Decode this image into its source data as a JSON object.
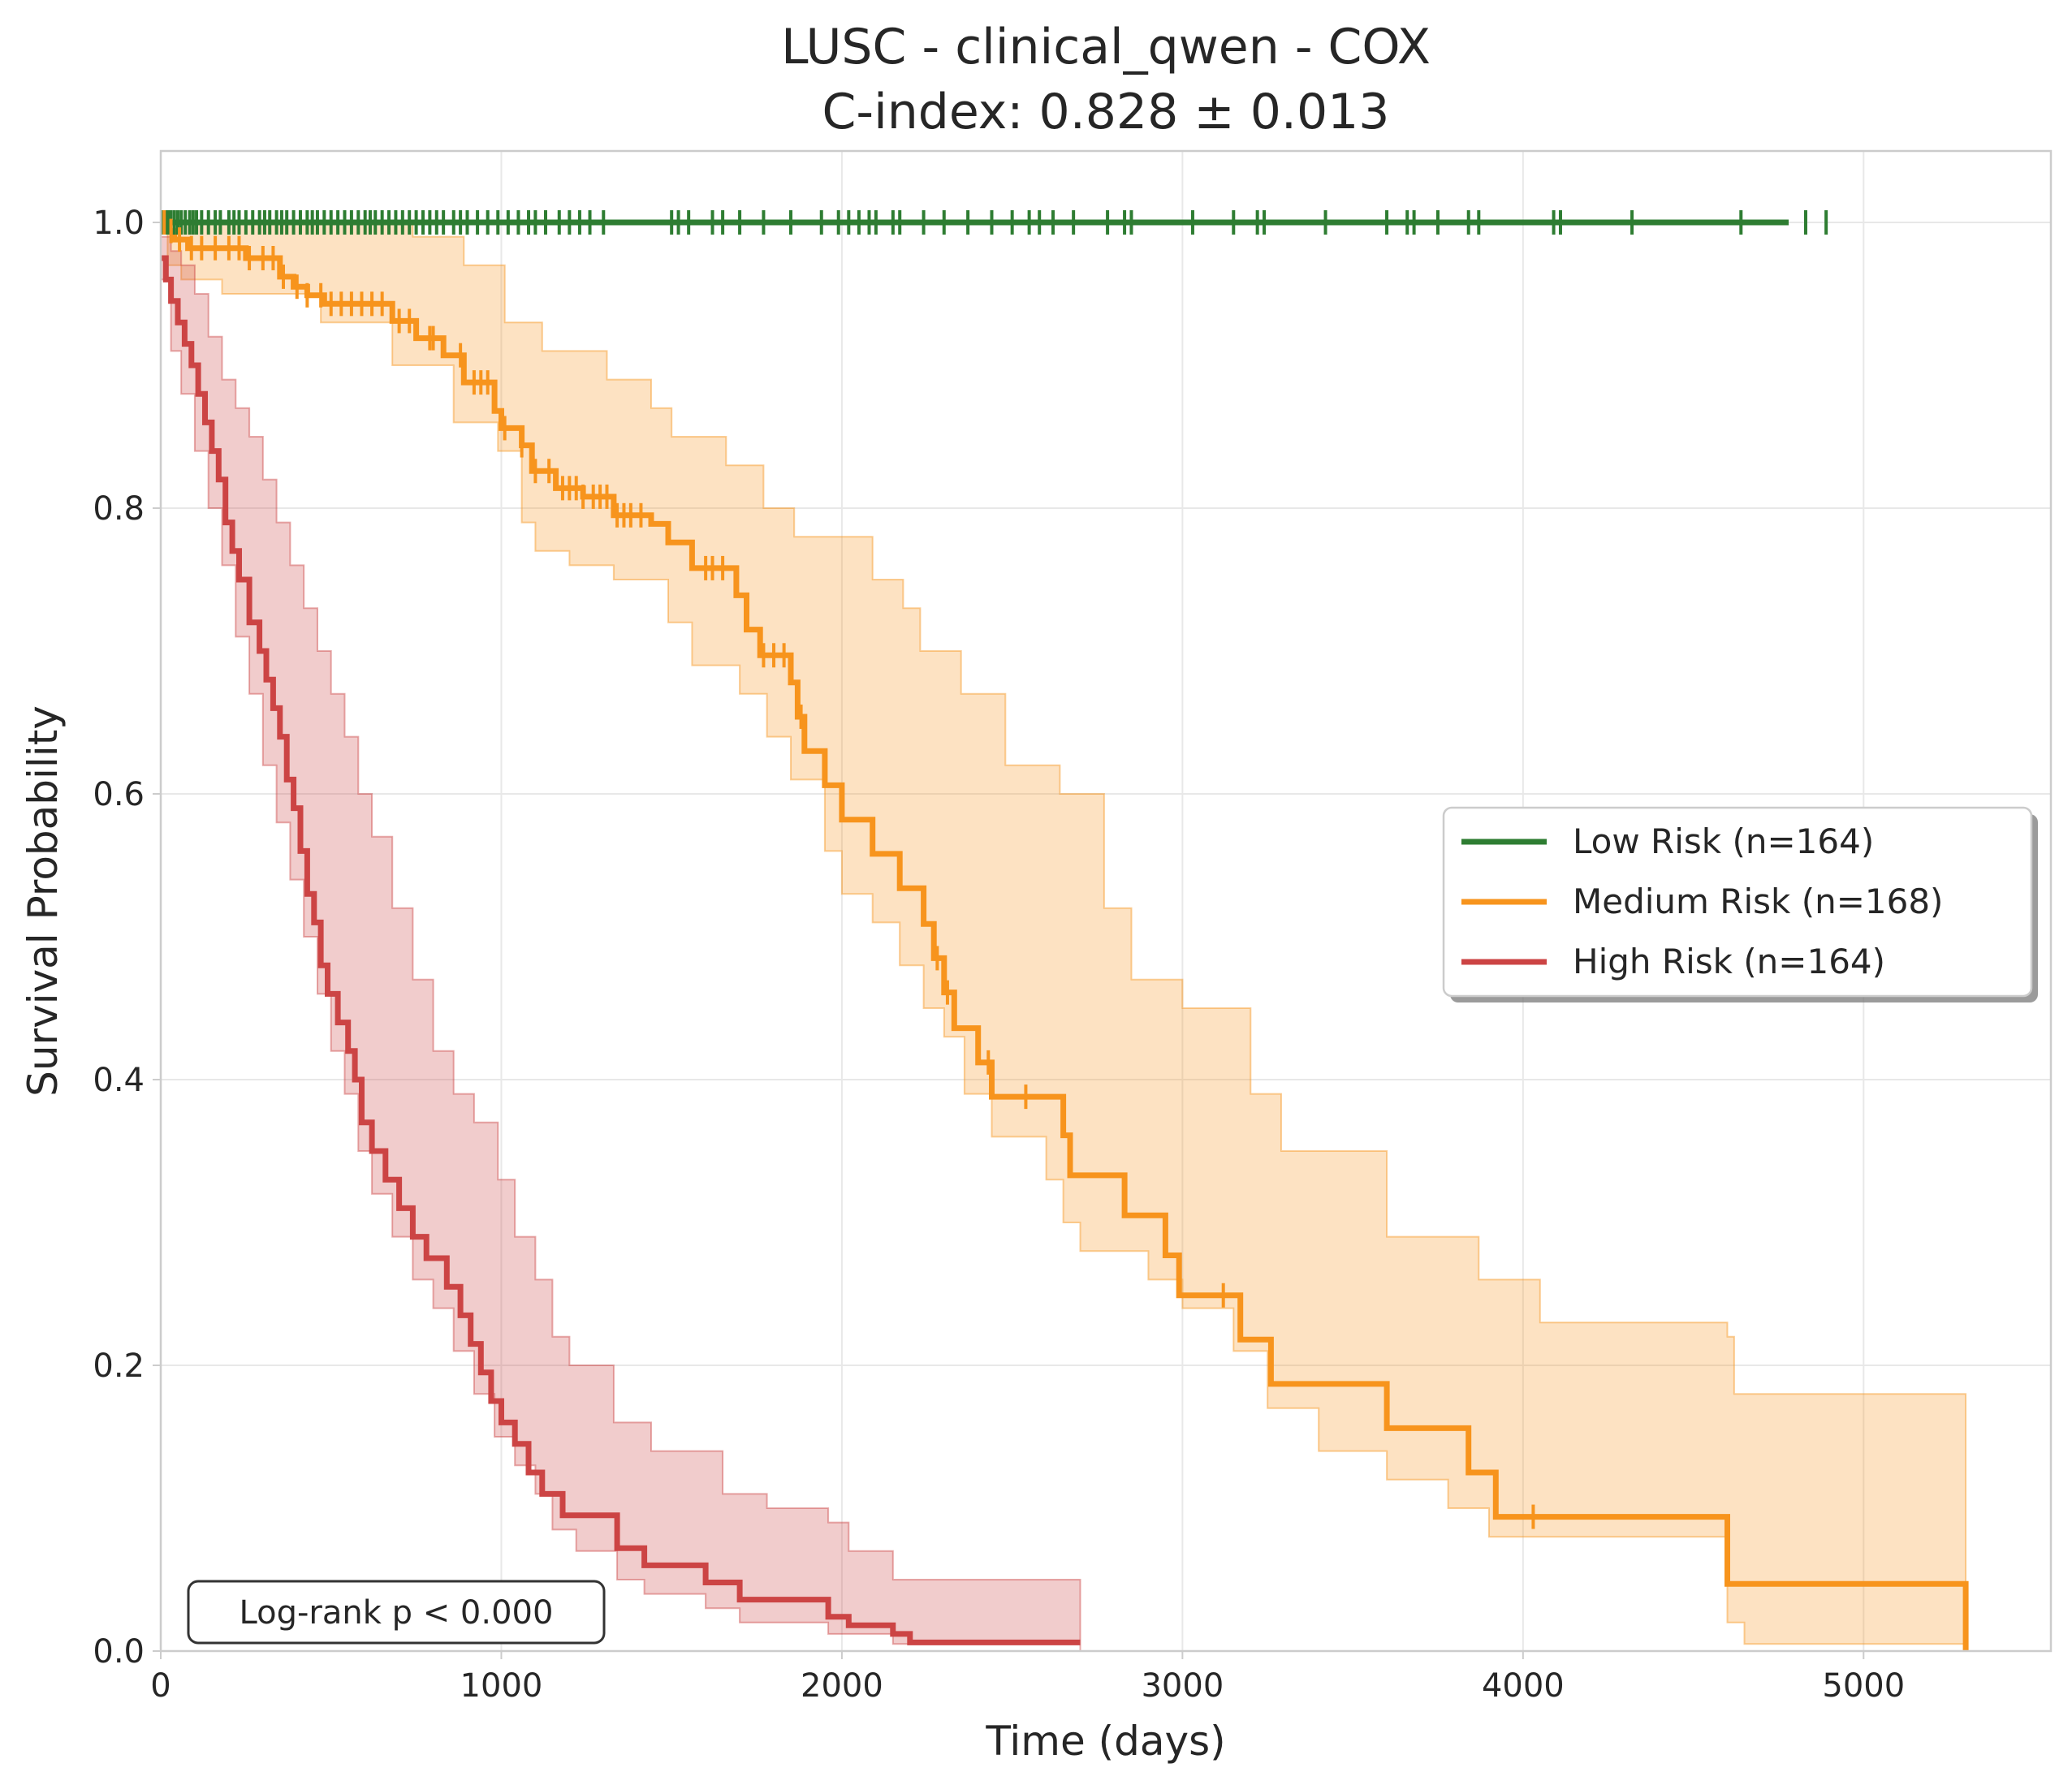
{
  "chart_data": {
    "type": "line",
    "title_line1": "LUSC - clinical_qwen - COX",
    "title_line2": "C-index: 0.828 ± 0.013",
    "xlabel": "Time (days)",
    "ylabel": "Survival Probability",
    "xlim": [
      0,
      5550
    ],
    "ylim": [
      0,
      1.05
    ],
    "x_ticks": [
      0,
      1000,
      2000,
      3000,
      4000,
      5000
    ],
    "x_tick_labels": [
      "0",
      "1000",
      "2000",
      "3000",
      "4000",
      "5000"
    ],
    "y_ticks": [
      0,
      0.2,
      0.4,
      0.6,
      0.8,
      1.0
    ],
    "y_tick_labels": [
      "0.0",
      "0.2",
      "0.4",
      "0.6",
      "0.8",
      "1.0"
    ],
    "grid": true,
    "legend_position": "center-right",
    "annotation": "Log-rank p < 0.000",
    "series": [
      {
        "name": "Low Risk (n=164)",
        "color": "#2e7d32",
        "steps": [
          [
            0,
            1.0
          ],
          [
            4780,
            1.0
          ]
        ],
        "ci_lower": [
          [
            0,
            1.0
          ],
          [
            4780,
            1.0
          ]
        ],
        "ci_upper": [
          [
            0,
            1.0
          ],
          [
            4780,
            1.0
          ]
        ],
        "censors": [
          5,
          10,
          15,
          22,
          30,
          40,
          50,
          60,
          72,
          85,
          95,
          105,
          120,
          140,
          160,
          175,
          200,
          215,
          230,
          250,
          270,
          290,
          305,
          320,
          340,
          355,
          370,
          390,
          410,
          430,
          445,
          460,
          480,
          500,
          520,
          540,
          560,
          580,
          600,
          615,
          630,
          650,
          670,
          690,
          710,
          730,
          750,
          770,
          790,
          810,
          830,
          860,
          880,
          900,
          930,
          960,
          990,
          1020,
          1050,
          1080,
          1100,
          1130,
          1170,
          1200,
          1230,
          1260,
          1300,
          1500,
          1520,
          1550,
          1620,
          1650,
          1700,
          1770,
          1850,
          1940,
          1990,
          2020,
          2050,
          2080,
          2100,
          2150,
          2170,
          2240,
          2300,
          2370,
          2440,
          2500,
          2550,
          2580,
          2620,
          2680,
          2780,
          2830,
          2850,
          3030,
          3150,
          3220,
          3240,
          3420,
          3600,
          3660,
          3680,
          3750,
          3840,
          3870,
          4090,
          4110,
          4320,
          4640,
          4830,
          4890
        ]
      },
      {
        "name": "Medium Risk (n=168)",
        "color": "#f7941d",
        "steps": [
          [
            0,
            1.0
          ],
          [
            15,
            0.994
          ],
          [
            40,
            0.988
          ],
          [
            80,
            0.982
          ],
          [
            150,
            0.982
          ],
          [
            250,
            0.975
          ],
          [
            350,
            0.962
          ],
          [
            390,
            0.955
          ],
          [
            430,
            0.949
          ],
          [
            480,
            0.943
          ],
          [
            640,
            0.943
          ],
          [
            680,
            0.931
          ],
          [
            750,
            0.919
          ],
          [
            830,
            0.907
          ],
          [
            890,
            0.888
          ],
          [
            980,
            0.868
          ],
          [
            1000,
            0.856
          ],
          [
            1060,
            0.844
          ],
          [
            1090,
            0.826
          ],
          [
            1160,
            0.814
          ],
          [
            1240,
            0.808
          ],
          [
            1330,
            0.795
          ],
          [
            1440,
            0.789
          ],
          [
            1490,
            0.776
          ],
          [
            1560,
            0.758
          ],
          [
            1690,
            0.739
          ],
          [
            1720,
            0.715
          ],
          [
            1760,
            0.697
          ],
          [
            1850,
            0.678
          ],
          [
            1870,
            0.654
          ],
          [
            1890,
            0.63
          ],
          [
            1950,
            0.606
          ],
          [
            2000,
            0.582
          ],
          [
            2090,
            0.558
          ],
          [
            2170,
            0.534
          ],
          [
            2240,
            0.509
          ],
          [
            2270,
            0.485
          ],
          [
            2300,
            0.461
          ],
          [
            2330,
            0.436
          ],
          [
            2400,
            0.412
          ],
          [
            2440,
            0.388
          ],
          [
            2650,
            0.361
          ],
          [
            2670,
            0.333
          ],
          [
            2830,
            0.305
          ],
          [
            2950,
            0.277
          ],
          [
            2990,
            0.249
          ],
          [
            3170,
            0.218
          ],
          [
            3260,
            0.187
          ],
          [
            3600,
            0.156
          ],
          [
            3840,
            0.125
          ],
          [
            3920,
            0.094
          ],
          [
            4600,
            0.047
          ],
          [
            5300,
            0.047
          ],
          [
            5300,
            0.0
          ]
        ],
        "ci_lower": [
          [
            0,
            1.0
          ],
          [
            20,
            0.97
          ],
          [
            60,
            0.96
          ],
          [
            180,
            0.95
          ],
          [
            470,
            0.93
          ],
          [
            680,
            0.9
          ],
          [
            860,
            0.86
          ],
          [
            990,
            0.84
          ],
          [
            1060,
            0.79
          ],
          [
            1100,
            0.77
          ],
          [
            1200,
            0.76
          ],
          [
            1330,
            0.75
          ],
          [
            1490,
            0.72
          ],
          [
            1560,
            0.69
          ],
          [
            1700,
            0.67
          ],
          [
            1780,
            0.64
          ],
          [
            1850,
            0.61
          ],
          [
            1950,
            0.56
          ],
          [
            2000,
            0.53
          ],
          [
            2090,
            0.51
          ],
          [
            2170,
            0.48
          ],
          [
            2240,
            0.45
          ],
          [
            2300,
            0.43
          ],
          [
            2360,
            0.39
          ],
          [
            2440,
            0.36
          ],
          [
            2600,
            0.33
          ],
          [
            2650,
            0.3
          ],
          [
            2700,
            0.28
          ],
          [
            2900,
            0.26
          ],
          [
            3000,
            0.24
          ],
          [
            3150,
            0.21
          ],
          [
            3250,
            0.17
          ],
          [
            3400,
            0.14
          ],
          [
            3600,
            0.12
          ],
          [
            3780,
            0.1
          ],
          [
            3900,
            0.08
          ],
          [
            4600,
            0.02
          ],
          [
            4650,
            0.005
          ],
          [
            5300,
            0.005
          ]
        ],
        "ci_upper": [
          [
            0,
            1.0
          ],
          [
            420,
            1.0
          ],
          [
            740,
            0.99
          ],
          [
            890,
            0.97
          ],
          [
            1010,
            0.93
          ],
          [
            1120,
            0.91
          ],
          [
            1310,
            0.89
          ],
          [
            1440,
            0.87
          ],
          [
            1500,
            0.85
          ],
          [
            1660,
            0.83
          ],
          [
            1770,
            0.8
          ],
          [
            1860,
            0.78
          ],
          [
            2090,
            0.75
          ],
          [
            2180,
            0.73
          ],
          [
            2230,
            0.7
          ],
          [
            2350,
            0.67
          ],
          [
            2480,
            0.62
          ],
          [
            2640,
            0.6
          ],
          [
            2770,
            0.52
          ],
          [
            2850,
            0.47
          ],
          [
            3000,
            0.45
          ],
          [
            3200,
            0.39
          ],
          [
            3290,
            0.35
          ],
          [
            3600,
            0.29
          ],
          [
            3870,
            0.26
          ],
          [
            4050,
            0.23
          ],
          [
            4600,
            0.22
          ],
          [
            4620,
            0.18
          ],
          [
            5300,
            0.18
          ]
        ],
        "censors": [
          10,
          30,
          55,
          90,
          120,
          160,
          200,
          230,
          260,
          300,
          330,
          360,
          400,
          430,
          470,
          500,
          530,
          560,
          590,
          620,
          650,
          700,
          730,
          790,
          800,
          880,
          920,
          940,
          960,
          1010,
          1060,
          1100,
          1140,
          1180,
          1200,
          1220,
          1240,
          1270,
          1290,
          1310,
          1340,
          1360,
          1380,
          1410,
          1600,
          1620,
          1650,
          1770,
          1800,
          1830,
          1880,
          2280,
          2310,
          2430,
          2540,
          3120,
          4030
        ]
      },
      {
        "name": "High Risk (n=164)",
        "color": "#cc4444",
        "steps": [
          [
            0,
            0.975
          ],
          [
            15,
            0.96
          ],
          [
            30,
            0.945
          ],
          [
            50,
            0.93
          ],
          [
            70,
            0.915
          ],
          [
            90,
            0.9
          ],
          [
            110,
            0.88
          ],
          [
            130,
            0.86
          ],
          [
            150,
            0.84
          ],
          [
            170,
            0.82
          ],
          [
            190,
            0.79
          ],
          [
            210,
            0.77
          ],
          [
            230,
            0.75
          ],
          [
            260,
            0.72
          ],
          [
            290,
            0.7
          ],
          [
            310,
            0.68
          ],
          [
            330,
            0.66
          ],
          [
            350,
            0.64
          ],
          [
            370,
            0.61
          ],
          [
            390,
            0.59
          ],
          [
            410,
            0.56
          ],
          [
            430,
            0.53
          ],
          [
            450,
            0.51
          ],
          [
            470,
            0.48
          ],
          [
            490,
            0.46
          ],
          [
            520,
            0.44
          ],
          [
            550,
            0.42
          ],
          [
            570,
            0.4
          ],
          [
            590,
            0.37
          ],
          [
            620,
            0.35
          ],
          [
            660,
            0.33
          ],
          [
            700,
            0.31
          ],
          [
            740,
            0.29
          ],
          [
            780,
            0.275
          ],
          [
            840,
            0.255
          ],
          [
            880,
            0.235
          ],
          [
            910,
            0.215
          ],
          [
            940,
            0.195
          ],
          [
            970,
            0.175
          ],
          [
            1000,
            0.16
          ],
          [
            1040,
            0.145
          ],
          [
            1080,
            0.125
          ],
          [
            1120,
            0.11
          ],
          [
            1180,
            0.095
          ],
          [
            1340,
            0.072
          ],
          [
            1420,
            0.06
          ],
          [
            1600,
            0.048
          ],
          [
            1700,
            0.036
          ],
          [
            1960,
            0.024
          ],
          [
            2020,
            0.018
          ],
          [
            2150,
            0.012
          ],
          [
            2200,
            0.006
          ],
          [
            2700,
            0.006
          ]
        ],
        "ci_lower": [
          [
            0,
            0.96
          ],
          [
            30,
            0.91
          ],
          [
            60,
            0.88
          ],
          [
            100,
            0.84
          ],
          [
            140,
            0.8
          ],
          [
            180,
            0.76
          ],
          [
            220,
            0.71
          ],
          [
            260,
            0.67
          ],
          [
            300,
            0.62
          ],
          [
            340,
            0.58
          ],
          [
            380,
            0.54
          ],
          [
            420,
            0.5
          ],
          [
            460,
            0.46
          ],
          [
            500,
            0.42
          ],
          [
            540,
            0.39
          ],
          [
            580,
            0.35
          ],
          [
            620,
            0.32
          ],
          [
            680,
            0.29
          ],
          [
            740,
            0.26
          ],
          [
            800,
            0.24
          ],
          [
            860,
            0.21
          ],
          [
            920,
            0.18
          ],
          [
            980,
            0.15
          ],
          [
            1040,
            0.13
          ],
          [
            1100,
            0.11
          ],
          [
            1150,
            0.085
          ],
          [
            1220,
            0.07
          ],
          [
            1340,
            0.05
          ],
          [
            1420,
            0.04
          ],
          [
            1600,
            0.03
          ],
          [
            1700,
            0.02
          ],
          [
            1960,
            0.012
          ],
          [
            2150,
            0.005
          ],
          [
            2700,
            0.0
          ]
        ],
        "ci_upper": [
          [
            0,
            0.99
          ],
          [
            30,
            0.98
          ],
          [
            60,
            0.97
          ],
          [
            100,
            0.95
          ],
          [
            140,
            0.92
          ],
          [
            180,
            0.89
          ],
          [
            220,
            0.87
          ],
          [
            260,
            0.85
          ],
          [
            300,
            0.82
          ],
          [
            340,
            0.79
          ],
          [
            380,
            0.76
          ],
          [
            420,
            0.73
          ],
          [
            460,
            0.7
          ],
          [
            500,
            0.67
          ],
          [
            540,
            0.64
          ],
          [
            580,
            0.6
          ],
          [
            620,
            0.57
          ],
          [
            680,
            0.52
          ],
          [
            740,
            0.47
          ],
          [
            800,
            0.42
          ],
          [
            860,
            0.39
          ],
          [
            920,
            0.37
          ],
          [
            990,
            0.33
          ],
          [
            1040,
            0.29
          ],
          [
            1100,
            0.26
          ],
          [
            1150,
            0.22
          ],
          [
            1200,
            0.2
          ],
          [
            1330,
            0.16
          ],
          [
            1440,
            0.14
          ],
          [
            1650,
            0.11
          ],
          [
            1780,
            0.1
          ],
          [
            1960,
            0.09
          ],
          [
            2020,
            0.07
          ],
          [
            2150,
            0.05
          ],
          [
            2700,
            0.03
          ]
        ],
        "censors": []
      }
    ]
  }
}
